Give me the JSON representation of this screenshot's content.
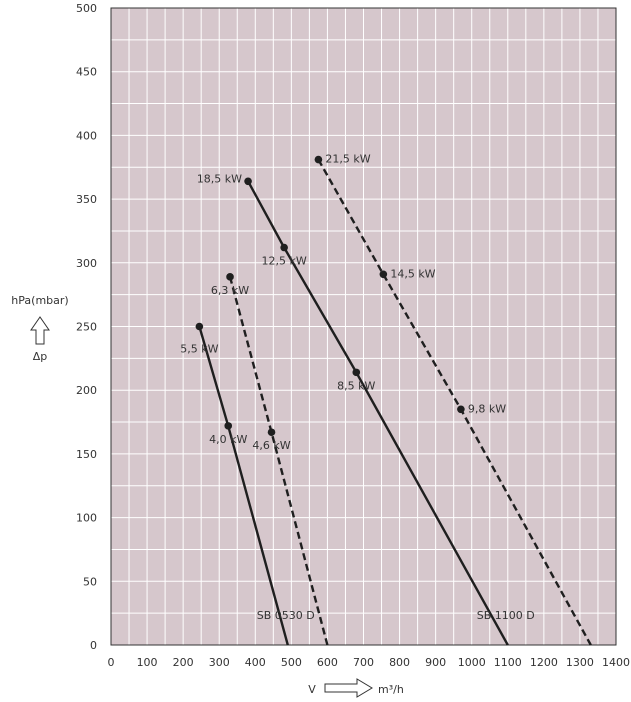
{
  "colors": {
    "plot_bg": "#d6c7cc",
    "grid": "#ffffff",
    "axis": "#333333",
    "line": "#1f1f1f",
    "text": "#333333"
  },
  "chart_data": {
    "type": "line",
    "title": "",
    "xlabel": "V",
    "xunit": "m³/h",
    "ylabel": "hPa(mbar)",
    "ylabel_symbol": "Δp",
    "xlim": [
      0,
      1400
    ],
    "ylim": [
      0,
      500
    ],
    "xticks": [
      0,
      100,
      200,
      300,
      400,
      500,
      600,
      700,
      800,
      900,
      1000,
      1100,
      1200,
      1300,
      1400
    ],
    "xtick_labels": [
      "0",
      "100",
      "200",
      "300",
      "400",
      "500",
      "600",
      "700",
      "800",
      "900",
      "1000",
      "1100",
      "1200",
      "1300",
      "1400"
    ],
    "yticks": [
      0,
      50,
      100,
      150,
      200,
      250,
      300,
      350,
      400,
      450,
      500
    ],
    "ytick_labels": [
      "0",
      "50",
      "100",
      "150",
      "200",
      "250",
      "300",
      "350",
      "400",
      "450",
      "500"
    ],
    "grid": true,
    "series": [
      {
        "name": "SB 0530 D",
        "style": "solid",
        "points": [
          [
            245,
            250
          ],
          [
            325,
            172
          ],
          [
            490,
            0
          ]
        ],
        "markers": [
          {
            "x": 245,
            "y": 250,
            "label": "5,5 kW",
            "anchor": "below-left"
          },
          {
            "x": 325,
            "y": 172,
            "label": "4,0 kW",
            "anchor": "below"
          }
        ],
        "end_label": "SB 0530 D"
      },
      {
        "name": "",
        "style": "dashed",
        "points": [
          [
            330,
            289
          ],
          [
            445,
            167
          ],
          [
            600,
            0
          ]
        ],
        "markers": [
          {
            "x": 330,
            "y": 289,
            "label": "6,3 kW",
            "anchor": "below"
          },
          {
            "x": 445,
            "y": 167,
            "label": "4,6 kW",
            "anchor": "below"
          }
        ]
      },
      {
        "name": "SB 1100 D",
        "style": "solid",
        "points": [
          [
            380,
            364
          ],
          [
            480,
            312
          ],
          [
            680,
            214
          ],
          [
            1100,
            0
          ]
        ],
        "markers": [
          {
            "x": 380,
            "y": 364,
            "label": "18,5 kW",
            "anchor": "left"
          },
          {
            "x": 480,
            "y": 312,
            "label": "12,5 kW",
            "anchor": "below"
          },
          {
            "x": 680,
            "y": 214,
            "label": "8,5 kW",
            "anchor": "below"
          }
        ],
        "end_label": "SB 1100 D"
      },
      {
        "name": "",
        "style": "dashed",
        "points": [
          [
            575,
            381
          ],
          [
            755,
            291
          ],
          [
            970,
            185
          ],
          [
            1330,
            0
          ]
        ],
        "markers": [
          {
            "x": 575,
            "y": 381,
            "label": "21,5 kW",
            "anchor": "right"
          },
          {
            "x": 755,
            "y": 291,
            "label": "14,5 kW",
            "anchor": "right"
          },
          {
            "x": 970,
            "y": 185,
            "label": "9,8 kW",
            "anchor": "right"
          }
        ]
      }
    ]
  }
}
